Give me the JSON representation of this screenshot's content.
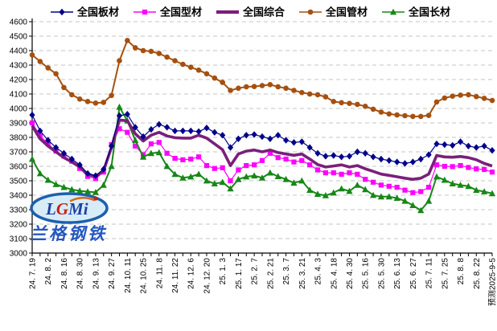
{
  "watermark": {
    "logo_text": "LGMi",
    "company_text": "兰格钢铁"
  },
  "chart_data": {
    "type": "line",
    "title": "",
    "legend_position": "top",
    "grid": "horizontal-dashed",
    "ylim": [
      3000,
      4600
    ],
    "ytick_step": 100,
    "x_label_every": 2,
    "x_labels": [
      "24. 7. 19",
      "24. 8. 2",
      "24. 8. 16",
      "24. 8. 30",
      "24. 9. 13",
      "24. 9. 27",
      "24. 10. 11",
      "24. 10. 25",
      "24. 11. 8",
      "24. 11. 22",
      "24. 12. 6",
      "24. 12. 20",
      "25. 1. 3",
      "25. 1. 17",
      "25. 2. 7",
      "25. 2. 21",
      "25. 3. 7",
      "25. 3. 21",
      "25. 4. 3",
      "25. 4. 18",
      "25. 4. 30",
      "25. 5. 16",
      "25. 5. 30",
      "25. 6. 13",
      "25. 6. 27",
      "25. 7. 11",
      "25. 7. 25",
      "25. 8. 8",
      "25. 8. 22",
      "预测2025-9-5"
    ],
    "series": [
      {
        "name": "全国板材",
        "slug": "plate",
        "color": "#00008B",
        "marker": "diamond",
        "line_width": 1.2,
        "values": [
          3955,
          3845,
          3780,
          3730,
          3690,
          3650,
          3610,
          3550,
          3535,
          3580,
          3740,
          3950,
          3960,
          3870,
          3805,
          3855,
          3890,
          3870,
          3845,
          3845,
          3845,
          3840,
          3865,
          3835,
          3815,
          3730,
          3790,
          3815,
          3820,
          3805,
          3790,
          3815,
          3780,
          3765,
          3770,
          3730,
          3690,
          3670,
          3675,
          3665,
          3670,
          3700,
          3690,
          3665,
          3650,
          3640,
          3630,
          3620,
          3630,
          3650,
          3680,
          3755,
          3750,
          3745,
          3770,
          3740,
          3730,
          3740,
          3710
        ]
      },
      {
        "name": "全国型材",
        "slug": "section",
        "color": "#FF00FF",
        "marker": "square",
        "line_width": 1.2,
        "values": [
          3900,
          3810,
          3755,
          3705,
          3670,
          3635,
          3585,
          3530,
          3515,
          3560,
          3750,
          3860,
          3835,
          3740,
          3680,
          3755,
          3765,
          3690,
          3655,
          3645,
          3650,
          3665,
          3605,
          3585,
          3590,
          3500,
          3575,
          3605,
          3610,
          3640,
          3690,
          3660,
          3650,
          3630,
          3640,
          3610,
          3575,
          3555,
          3555,
          3545,
          3555,
          3545,
          3510,
          3490,
          3470,
          3462,
          3455,
          3435,
          3418,
          3425,
          3455,
          3610,
          3600,
          3598,
          3605,
          3592,
          3582,
          3578,
          3560
        ]
      },
      {
        "name": "全国综合",
        "slug": "composite",
        "color": "#7A1F7A",
        "marker": "none",
        "line_width": 3.6,
        "values": [
          3880,
          3790,
          3740,
          3700,
          3660,
          3630,
          3595,
          3545,
          3530,
          3570,
          3730,
          3920,
          3915,
          3825,
          3775,
          3815,
          3835,
          3810,
          3798,
          3795,
          3795,
          3815,
          3795,
          3755,
          3715,
          3605,
          3685,
          3705,
          3713,
          3700,
          3713,
          3695,
          3685,
          3676,
          3685,
          3650,
          3612,
          3595,
          3602,
          3610,
          3595,
          3605,
          3583,
          3565,
          3546,
          3537,
          3528,
          3518,
          3510,
          3518,
          3546,
          3675,
          3665,
          3663,
          3668,
          3660,
          3645,
          3620,
          3602
        ]
      },
      {
        "name": "全国管材",
        "slug": "pipe",
        "color": "#A6500F",
        "marker": "circle",
        "line_width": 2,
        "values": [
          4370,
          4325,
          4280,
          4240,
          4145,
          4095,
          4065,
          4048,
          4037,
          4042,
          4090,
          4330,
          4470,
          4420,
          4400,
          4395,
          4380,
          4355,
          4330,
          4305,
          4285,
          4265,
          4240,
          4210,
          4180,
          4125,
          4140,
          4150,
          4152,
          4158,
          4165,
          4150,
          4140,
          4125,
          4110,
          4100,
          4095,
          4080,
          4048,
          4040,
          4035,
          4028,
          4015,
          3995,
          3975,
          3962,
          3955,
          3950,
          3945,
          3945,
          3952,
          4045,
          4072,
          4085,
          4092,
          4095,
          4082,
          4070,
          4055
        ]
      },
      {
        "name": "全国长材",
        "slug": "long",
        "color": "#178717",
        "marker": "triangle",
        "line_width": 2,
        "values": [
          3650,
          3550,
          3505,
          3475,
          3455,
          3440,
          3430,
          3425,
          3420,
          3470,
          3600,
          4010,
          3915,
          3780,
          3665,
          3690,
          3695,
          3600,
          3545,
          3520,
          3528,
          3546,
          3500,
          3480,
          3490,
          3445,
          3510,
          3528,
          3535,
          3520,
          3555,
          3530,
          3510,
          3485,
          3500,
          3435,
          3408,
          3398,
          3417,
          3445,
          3428,
          3470,
          3440,
          3400,
          3390,
          3390,
          3380,
          3360,
          3330,
          3295,
          3360,
          3528,
          3505,
          3480,
          3470,
          3462,
          3435,
          3425,
          3412
        ]
      }
    ]
  }
}
